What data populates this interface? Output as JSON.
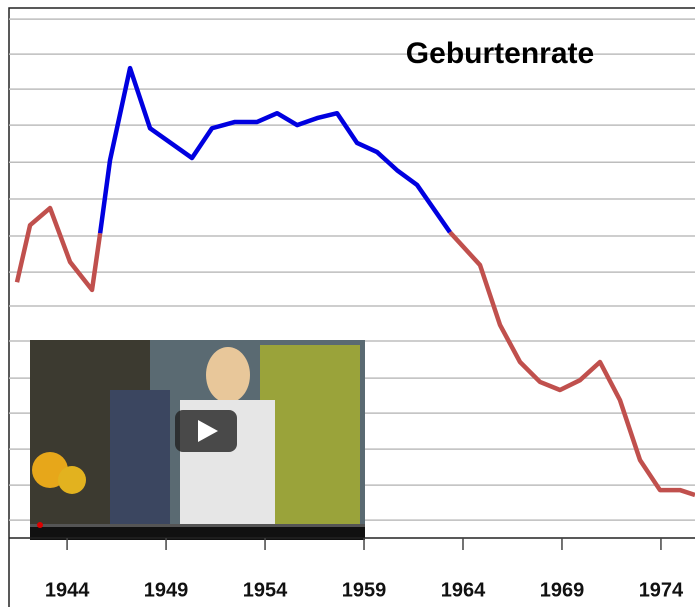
{
  "chart_data": {
    "type": "line",
    "title": "Geburtenrate",
    "x": [
      1941.47,
      1942.13,
      1943.14,
      1944.15,
      1945.26,
      1945.67,
      1946.17,
      1947.18,
      1948.19,
      1950.31,
      1951.32,
      1952.48,
      1953.6,
      1954.61,
      1955.62,
      1956.63,
      1957.64,
      1958.65,
      1959.66,
      1960.67,
      1961.68,
      1963.34,
      1964.86,
      1965.87,
      1966.88,
      1967.89,
      1968.9,
      1969.91,
      1970.92,
      1971.93,
      1972.94,
      1973.95,
      1974.96,
      1975.72
    ],
    "series": [
      {
        "color": "#c0504d",
        "values": [
          7.31,
          8.94,
          9.43,
          7.89,
          7.09,
          8.71,
          null,
          null,
          null,
          null,
          null,
          null,
          null,
          null,
          null,
          null,
          null,
          null,
          null,
          null,
          null,
          8.74,
          7.8,
          6.09,
          5.03,
          4.46,
          4.23,
          4.51,
          5.03,
          3.94,
          2.23,
          1.37,
          1.37,
          1.23
        ]
      },
      {
        "color": "#0000e0",
        "values": [
          null,
          null,
          null,
          null,
          null,
          8.71,
          10.8,
          13.43,
          11.71,
          10.86,
          11.71,
          11.89,
          11.89,
          12.14,
          11.8,
          12.0,
          12.14,
          11.29,
          11.03,
          10.51,
          10.09,
          8.74,
          null,
          null,
          null,
          null,
          null,
          null,
          null,
          null,
          null,
          null,
          null,
          null
        ]
      }
    ],
    "xlim": [
      1941.47,
      1975.72
    ],
    "xticks": [
      1944,
      1949,
      1954,
      1959,
      1964,
      1969,
      1974
    ],
    "ylim": [
      0,
      15.09
    ],
    "yticks": [
      0.51,
      1.51,
      2.54,
      3.57,
      4.57,
      5.63,
      6.63,
      7.6,
      8.63,
      9.69,
      10.74,
      11.8,
      12.83,
      13.83,
      14.83
    ],
    "grid": true
  }
}
